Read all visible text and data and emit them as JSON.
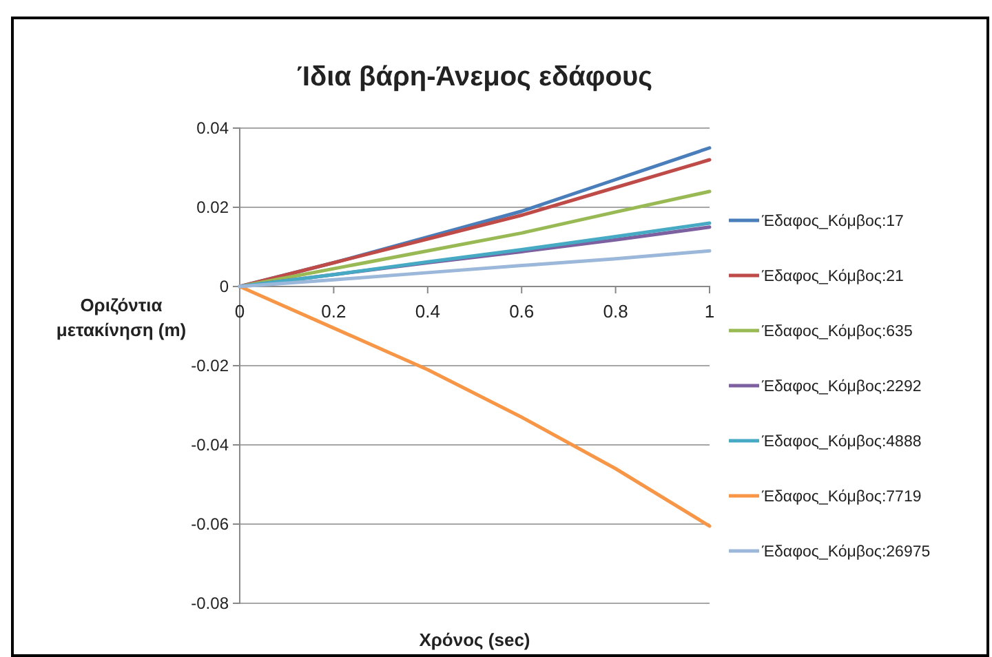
{
  "chart_data": {
    "type": "line",
    "title": "Ίδια βάρη-Άνεμος εδάφους",
    "xlabel": "Χρόνος (sec)",
    "ylabel": "Οριζόντια μετακίνηση (m)",
    "x": [
      0,
      0.2,
      0.4,
      0.6,
      0.8,
      1
    ],
    "xlim": [
      0,
      1
    ],
    "xticks": [
      0,
      0.2,
      0.4,
      0.6,
      0.8,
      1
    ],
    "ylim": [
      -0.08,
      0.04
    ],
    "yticks": [
      -0.08,
      -0.06,
      -0.04,
      -0.02,
      0,
      0.02,
      0.04
    ],
    "grid": "y",
    "legend": "right",
    "marker": "none",
    "line_style": "solid",
    "series": [
      {
        "name": "Έδαφος_Κόμβος:17",
        "color": "#4a7ebb",
        "values": [
          0,
          0.006,
          0.0125,
          0.019,
          0.027,
          0.035
        ]
      },
      {
        "name": "Έδαφος_Κόμβος:21",
        "color": "#be4b48",
        "values": [
          0,
          0.006,
          0.012,
          0.018,
          0.025,
          0.032
        ]
      },
      {
        "name": "Έδαφος_Κόμβος:635",
        "color": "#98b954",
        "values": [
          0,
          0.0045,
          0.009,
          0.0135,
          0.0188,
          0.024
        ]
      },
      {
        "name": "Έδαφος_Κόμβος:2292",
        "color": "#7d60a0",
        "values": [
          0,
          0.003,
          0.006,
          0.0088,
          0.0118,
          0.015
        ]
      },
      {
        "name": "Έδαφος_Κόμβος:4888",
        "color": "#46aac5",
        "values": [
          0,
          0.003,
          0.0062,
          0.0093,
          0.0126,
          0.016
        ]
      },
      {
        "name": "Έδαφος_Κόμβος:7719",
        "color": "#f79646",
        "values": [
          0,
          -0.0105,
          -0.021,
          -0.033,
          -0.046,
          -0.0605
        ]
      },
      {
        "name": "Έδαφος_Κόμβος:26975",
        "color": "#9bb7d9",
        "values": [
          0,
          0.0017,
          0.0035,
          0.0053,
          0.007,
          0.009
        ]
      }
    ]
  }
}
